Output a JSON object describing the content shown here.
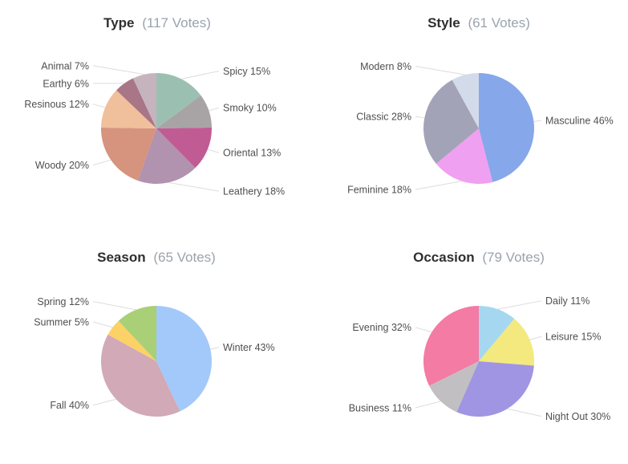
{
  "page": {
    "background": "#ffffff",
    "label_text_color": "#4f4f4f",
    "title_text_color": "#2f2f2f",
    "votes_text_color": "#9aa3ac",
    "leader_line_color": "#dcdcdc"
  },
  "chart_data": [
    {
      "id": "type",
      "type": "pie",
      "title": "Type",
      "subtitle": "(117 Votes)",
      "total_votes": 117,
      "start_angle_deg": 0,
      "direction": "clockwise",
      "legend_position": "callout-labels",
      "labels": [
        "Spicy",
        "Smoky",
        "Oriental",
        "Leathery",
        "Woody",
        "Resinous",
        "Earthy",
        "Animal"
      ],
      "values_pct": [
        15,
        10,
        13,
        18,
        20,
        12,
        6,
        7
      ],
      "colors": [
        "#9bc0b1",
        "#a8a4a6",
        "#c15b93",
        "#b192af",
        "#d6937d",
        "#f0bf9b",
        "#a87686",
        "#c5b4bd"
      ]
    },
    {
      "id": "style",
      "type": "pie",
      "title": "Style",
      "subtitle": "(61 Votes)",
      "total_votes": 61,
      "start_angle_deg": 0,
      "direction": "clockwise",
      "legend_position": "callout-labels",
      "labels": [
        "Masculine",
        "Feminine",
        "Classic",
        "Modern"
      ],
      "values_pct": [
        46,
        18,
        28,
        8
      ],
      "colors": [
        "#87a7eb",
        "#f0a0f0",
        "#a3a3b8",
        "#d3dbeb"
      ]
    },
    {
      "id": "season",
      "type": "pie",
      "title": "Season",
      "subtitle": "(65 Votes)",
      "total_votes": 65,
      "start_angle_deg": 0,
      "direction": "clockwise",
      "legend_position": "callout-labels",
      "labels": [
        "Winter",
        "Fall",
        "Summer",
        "Spring"
      ],
      "values_pct": [
        43,
        40,
        5,
        12
      ],
      "colors": [
        "#a3c9fa",
        "#d2a9b6",
        "#fcd166",
        "#a9cf77"
      ]
    },
    {
      "id": "occasion",
      "type": "pie",
      "title": "Occasion",
      "subtitle": "(79 Votes)",
      "total_votes": 79,
      "start_angle_deg": 0,
      "direction": "clockwise",
      "legend_position": "callout-labels",
      "labels": [
        "Daily",
        "Leisure",
        "Night Out",
        "Business",
        "Evening"
      ],
      "values_pct": [
        11,
        15,
        30,
        11,
        32
      ],
      "colors": [
        "#a5d8f0",
        "#f3e97e",
        "#a095e3",
        "#c1bfc1",
        "#f47ba3"
      ]
    }
  ]
}
